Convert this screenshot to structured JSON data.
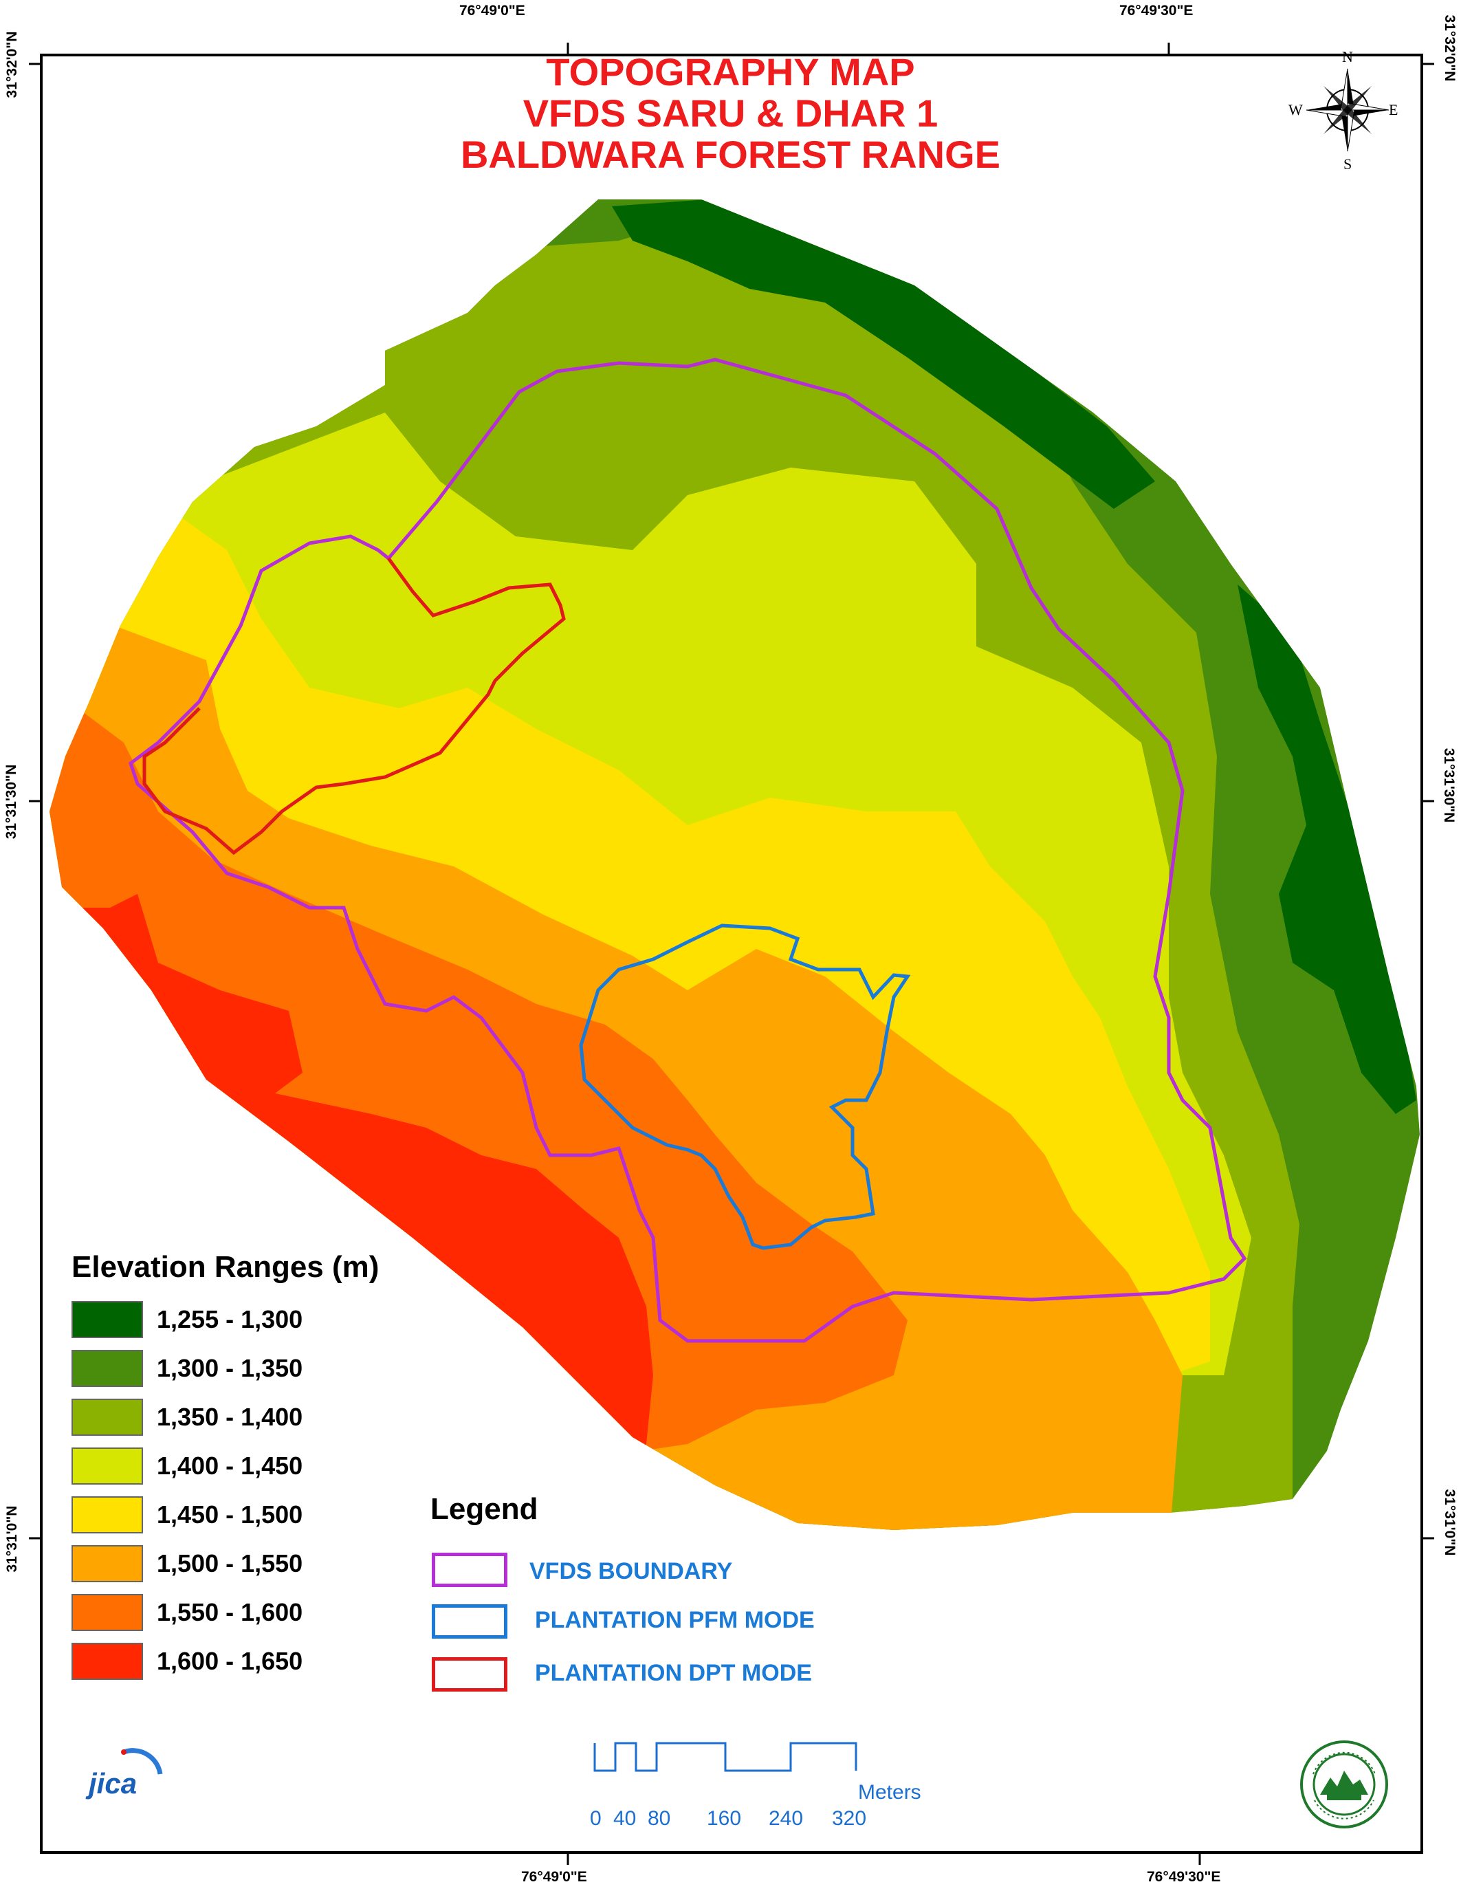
{
  "title": {
    "line1": "TOPOGRAPHY MAP",
    "line2": "VFDS SARU & DHAR 1",
    "line3": "BALDWARA FOREST RANGE"
  },
  "coordinates": {
    "top_left": "76°49'0\"E",
    "top_right": "76°49'30\"E",
    "bottom_left": "76°49'0\"E",
    "bottom_right": "76°49'30\"E",
    "left_top": "31°32'0\"N",
    "left_mid": "31°31'30\"N",
    "left_bottom": "31°31'0\"N",
    "right_top": "31°32'0\"N",
    "right_mid": "31°31'30\"N",
    "right_bottom": "31°31'0\"N"
  },
  "compass": {
    "n": "N",
    "s": "S",
    "e": "E",
    "w": "W"
  },
  "elevation_legend": {
    "title": "Elevation Ranges (m)",
    "ranges": [
      {
        "label": "1,255 - 1,300",
        "color": "#006400"
      },
      {
        "label": "1,300 - 1,350",
        "color": "#4a8c0c"
      },
      {
        "label": "1,350 - 1,400",
        "color": "#8bb200"
      },
      {
        "label": "1,400 - 1,450",
        "color": "#d6e600"
      },
      {
        "label": "1,450 - 1,500",
        "color": "#ffe100"
      },
      {
        "label": "1,500 - 1,550",
        "color": "#ffa500"
      },
      {
        "label": "1,550 - 1,600",
        "color": "#ff6e00"
      },
      {
        "label": "1,600 - 1,650",
        "color": "#ff2800"
      }
    ]
  },
  "legend": {
    "title": "Legend",
    "items": [
      {
        "label": "VFDS BOUNDARY",
        "color": "#b62fd6"
      },
      {
        "label": "PLANTATION PFM MODE",
        "color": "#1a7ad8"
      },
      {
        "label": "PLANTATION DPT MODE",
        "color": "#e01a1a"
      }
    ]
  },
  "scale_bar": {
    "unit": "Meters",
    "ticks": [
      "0",
      "40",
      "80",
      "160",
      "240",
      "320"
    ]
  },
  "logos": {
    "left": "jica",
    "right_icon": "forest-department-seal-icon"
  }
}
